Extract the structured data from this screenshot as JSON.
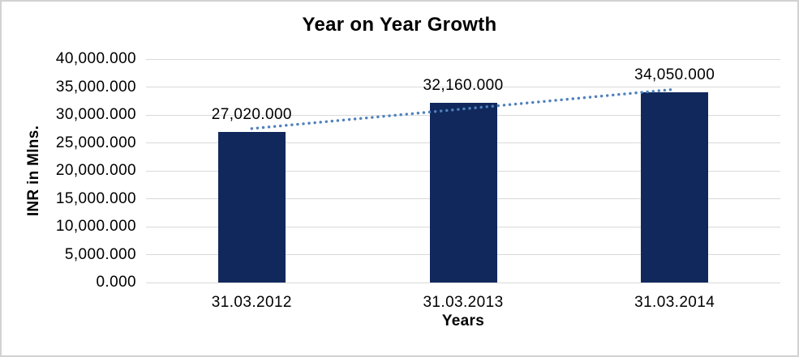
{
  "page": {
    "background": "#ffffff",
    "border_color": "#d2d2d2"
  },
  "chart_data": {
    "type": "bar",
    "title": "Year on Year Growth",
    "categories": [
      "31.03.2012",
      "31.03.2013",
      "31.03.2014"
    ],
    "values": [
      27020,
      32160,
      34050
    ],
    "data_labels": [
      "27,020.000",
      "32,160.000",
      "34,050.000"
    ],
    "xlabel": "Years",
    "ylabel": "INR in Mlns.",
    "ylim": [
      0,
      40000
    ],
    "ytick_step": 5000,
    "yticks": [
      "0.000",
      "5,000.000",
      "10,000.000",
      "15,000.000",
      "20,000.000",
      "25,000.000",
      "30,000.000",
      "35,000.000",
      "40,000.000"
    ],
    "grid": true,
    "legend": "none",
    "trendline": {
      "type": "linear",
      "style": "dotted",
      "color": "#4f81bd"
    },
    "colors": {
      "bar": "#10285c",
      "gridline": "#d9d9d9",
      "text": "#000000"
    }
  }
}
